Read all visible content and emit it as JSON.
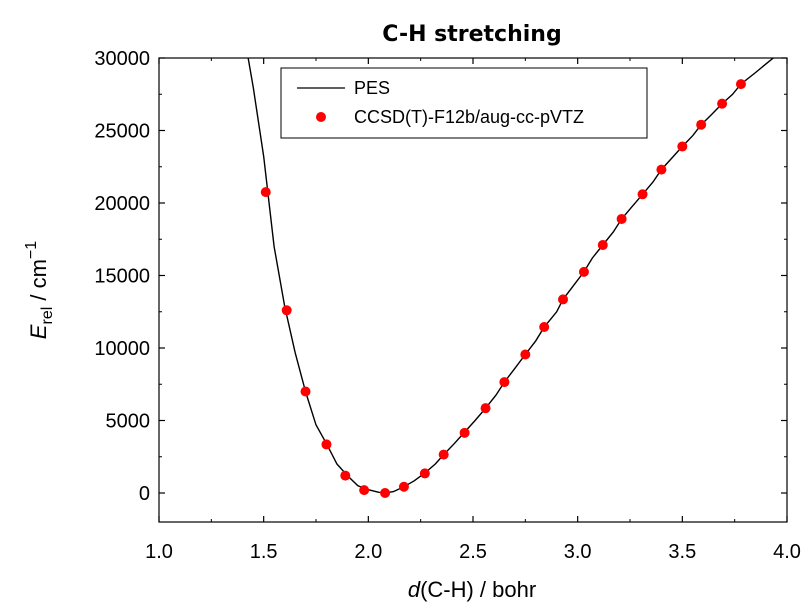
{
  "chart_data": {
    "type": "line",
    "title": "C-H stretching",
    "xlabel": {
      "italic": "d",
      "rest": "(C-H) / bohr"
    },
    "ylabel": {
      "italic": "E",
      "subscript": "rel",
      "rest": " / cm",
      "superscript": "−1"
    },
    "xlim": [
      1.0,
      4.0
    ],
    "ylim": [
      -2000,
      30000
    ],
    "xticks": [
      1.0,
      1.5,
      2.0,
      2.5,
      3.0,
      3.5,
      4.0
    ],
    "xtick_labels": [
      "1.0",
      "1.5",
      "2.0",
      "2.5",
      "3.0",
      "3.5",
      "4.0"
    ],
    "yticks": [
      0,
      5000,
      10000,
      15000,
      20000,
      25000,
      30000
    ],
    "ytick_labels": [
      "0",
      "5000",
      "10000",
      "15000",
      "20000",
      "25000",
      "30000"
    ],
    "grid": false,
    "legend_position": "top",
    "series": [
      {
        "name": "PES",
        "kind": "line",
        "color": "#000000",
        "x": [
          1.42,
          1.45,
          1.5,
          1.55,
          1.6,
          1.65,
          1.7,
          1.75,
          1.8,
          1.85,
          1.9,
          1.95,
          2.0,
          2.05,
          2.08,
          2.12,
          2.17,
          2.22,
          2.27,
          2.32,
          2.36,
          2.41,
          2.46,
          2.51,
          2.56,
          2.61,
          2.65,
          2.7,
          2.75,
          2.8,
          2.84,
          2.9,
          2.93,
          2.98,
          3.03,
          3.07,
          3.12,
          3.17,
          3.21,
          3.26,
          3.31,
          3.36,
          3.4,
          3.45,
          3.5,
          3.55,
          3.59,
          3.64,
          3.69,
          3.74,
          3.78,
          3.85,
          3.9,
          3.96
        ],
        "y": [
          30500,
          28000,
          23200,
          17000,
          12900,
          9700,
          7000,
          4700,
          3400,
          2000,
          1200,
          500,
          230,
          50,
          10,
          100,
          430,
          850,
          1380,
          2000,
          2650,
          3400,
          4200,
          5000,
          5850,
          6750,
          7650,
          8600,
          9550,
          10500,
          11450,
          12500,
          13350,
          14300,
          15250,
          16200,
          17100,
          18000,
          18900,
          19750,
          20600,
          21450,
          22300,
          23100,
          23900,
          24650,
          25400,
          26100,
          26850,
          27500,
          28200,
          29000,
          29600,
          30300
        ]
      },
      {
        "name": "CCSD(T)-F12b/aug-cc-pVTZ",
        "kind": "scatter",
        "color": "#ff0000",
        "x": [
          1.51,
          1.61,
          1.7,
          1.8,
          1.89,
          1.98,
          2.08,
          2.17,
          2.27,
          2.36,
          2.46,
          2.56,
          2.65,
          2.75,
          2.84,
          2.93,
          3.03,
          3.12,
          3.21,
          3.31,
          3.4,
          3.5,
          3.59,
          3.69,
          3.78
        ],
        "y": [
          20750,
          12600,
          7000,
          3350,
          1200,
          200,
          0,
          430,
          1350,
          2650,
          4150,
          5850,
          7650,
          9550,
          11450,
          13350,
          15250,
          17100,
          18900,
          20600,
          22300,
          23900,
          25400,
          26850,
          28200
        ]
      }
    ]
  }
}
